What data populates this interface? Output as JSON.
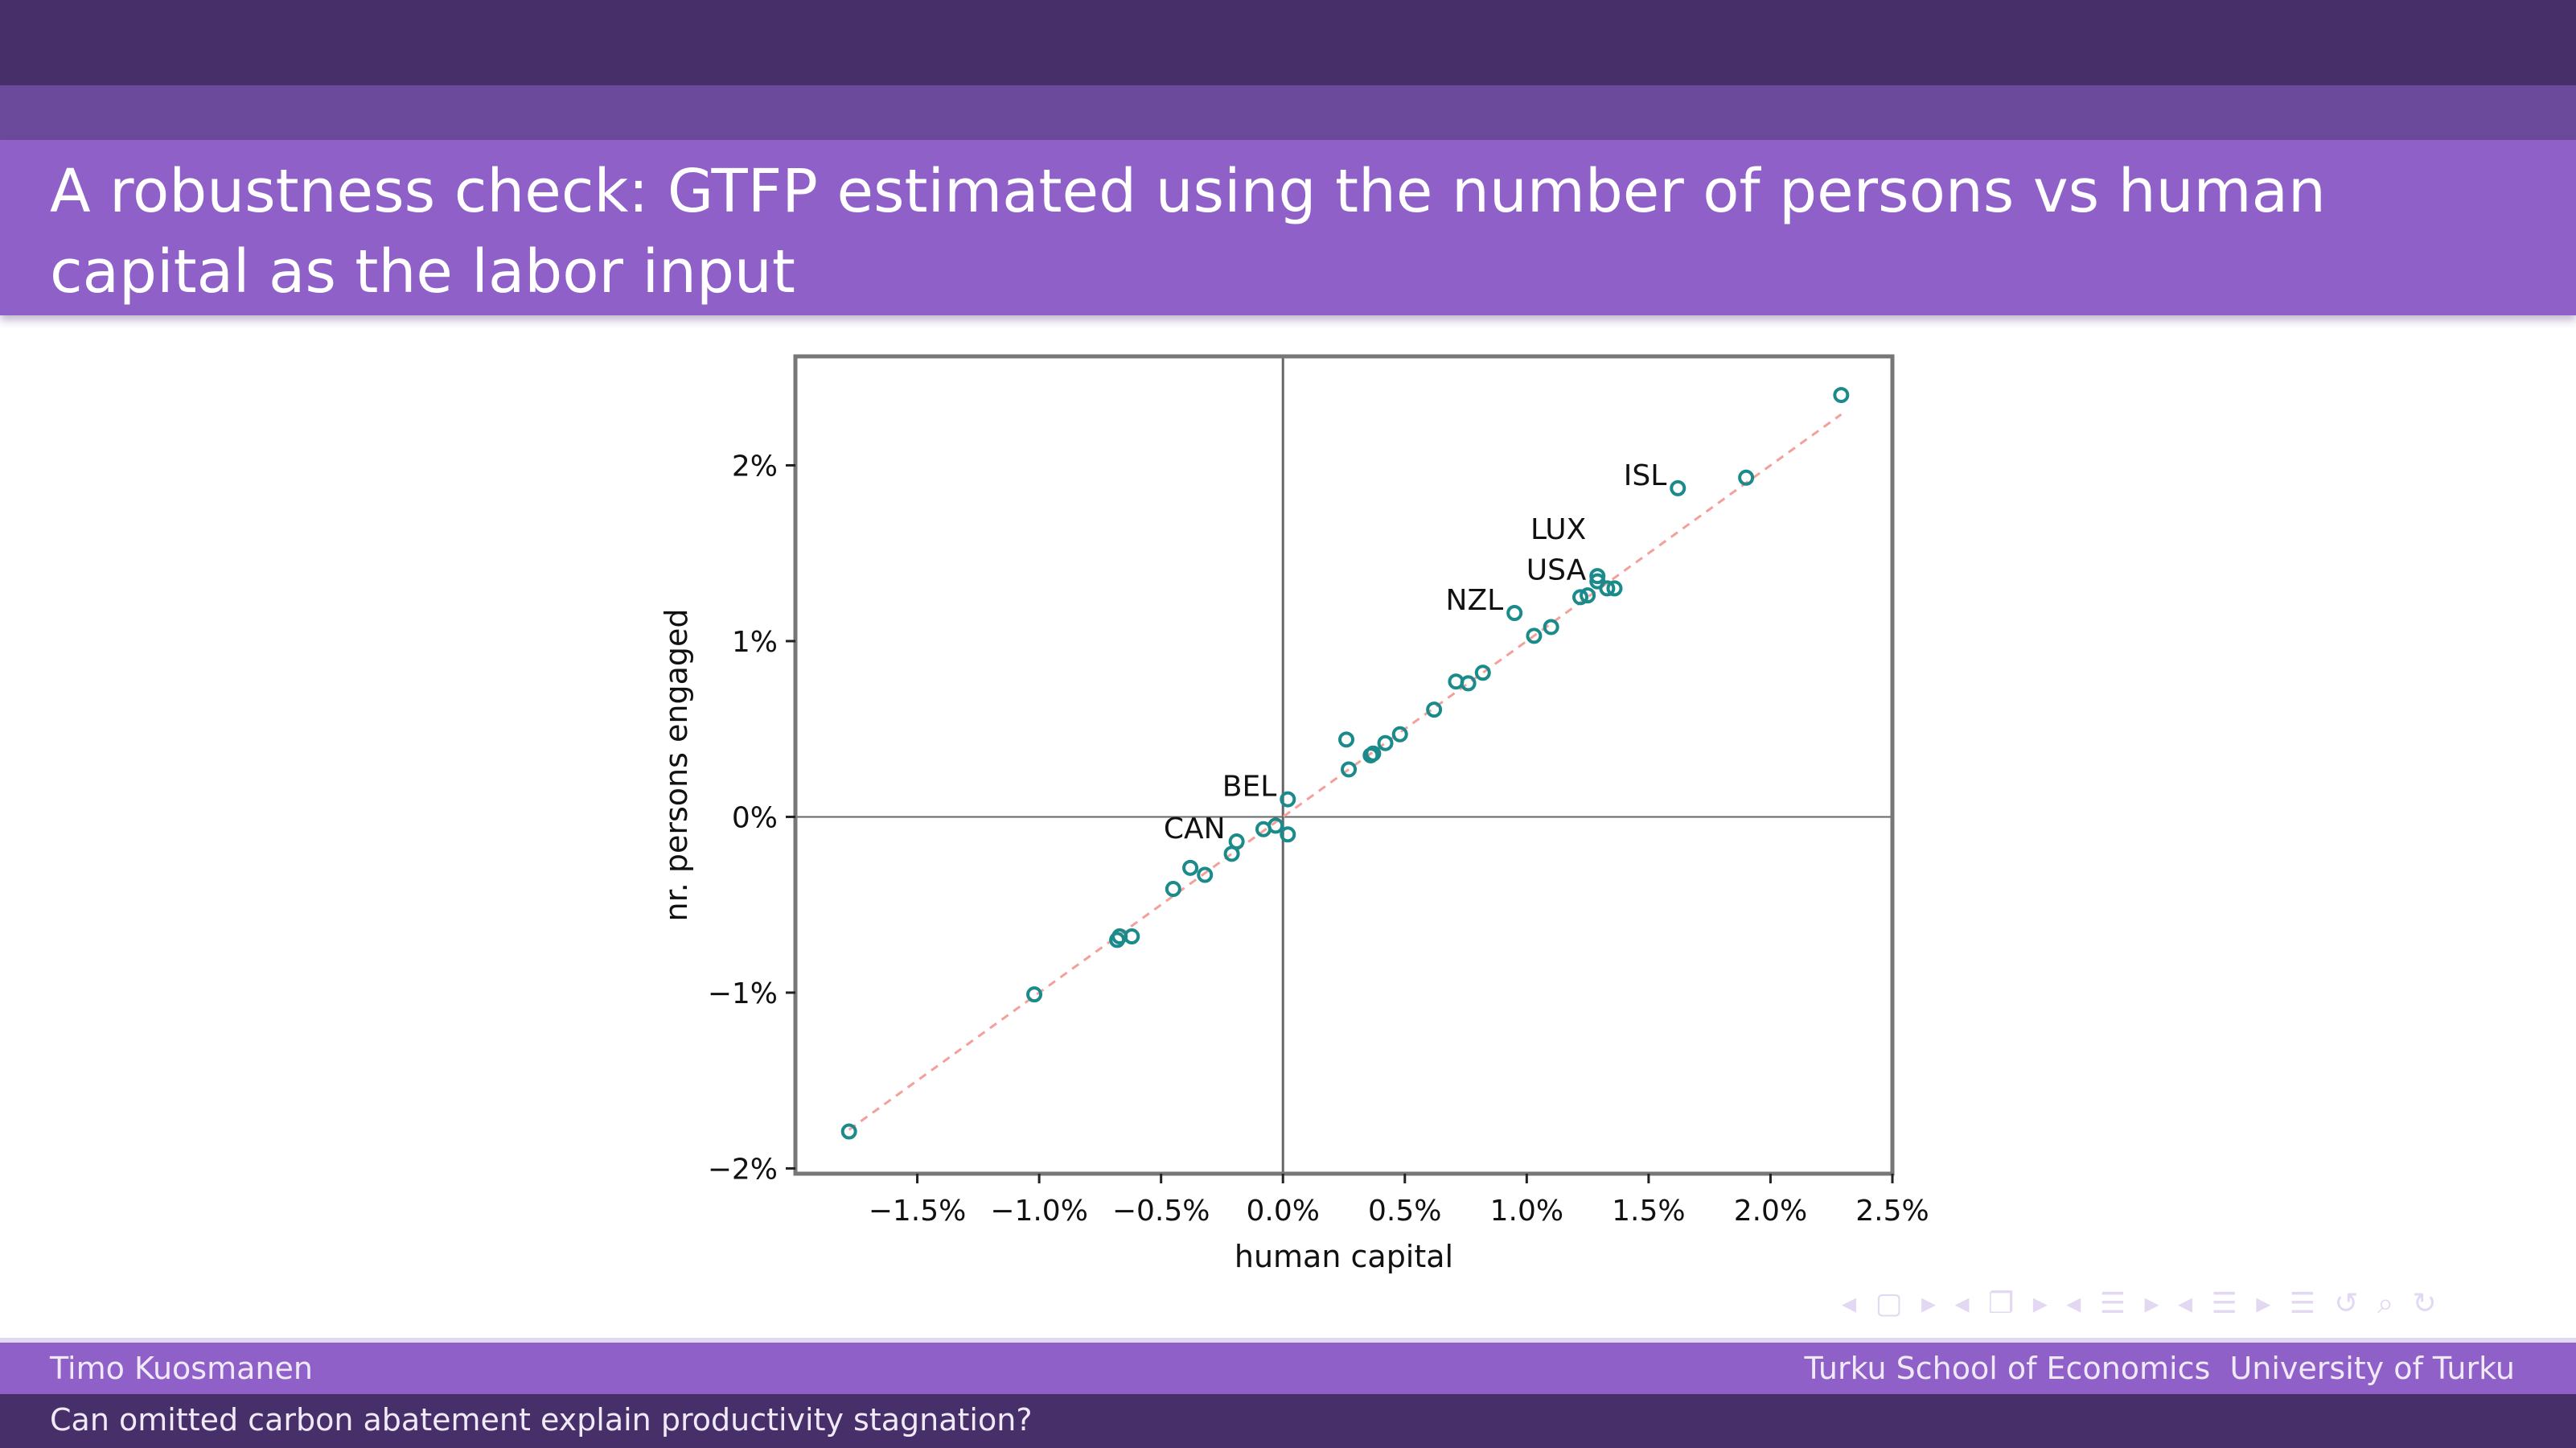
{
  "slide": {
    "title": "A robustness check: GTFP estimated using the number of persons vs human capital as the labor input",
    "footer_author": "Timo Kuosmanen",
    "footer_institution": "Turku School of Economics  University of Turku",
    "footer_talk": "Can omitted carbon abatement explain productivity stagnation?",
    "nav_icons": "◂ ▢ ▸ ◂ ❐ ▸ ◂ ☰ ▸ ◂ ☰ ▸  ☰  ↺ ⌕ ↻"
  },
  "colors": {
    "dark": "#472f69",
    "accent": "#8f60c8",
    "marker": "#1a8a8a",
    "fit_line": "#f4a09a"
  },
  "chart_data": {
    "type": "scatter",
    "xlabel": "human capital",
    "ylabel": "nr. persons engaged",
    "xlim": [
      -2.0,
      2.5
    ],
    "ylim": [
      -2.03,
      2.62
    ],
    "x_ticks": [
      -1.5,
      -1.0,
      -0.5,
      0.0,
      0.5,
      1.0,
      1.5,
      2.0,
      2.5
    ],
    "x_tick_labels": [
      "−1.5%",
      "−1.0%",
      "−0.5%",
      "0.0%",
      "0.5%",
      "1.0%",
      "1.5%",
      "2.0%",
      "2.5%"
    ],
    "y_ticks": [
      -2,
      -1,
      0,
      1,
      2
    ],
    "y_tick_labels": [
      "−2%",
      "−1%",
      "0%",
      "1%",
      "2%"
    ],
    "reference_lines": {
      "x": 0,
      "y": 0
    },
    "fit_line": [
      [
        -1.78,
        -1.78
      ],
      [
        2.29,
        2.29
      ]
    ],
    "grid": false,
    "points": [
      {
        "x": -1.78,
        "y": -1.79
      },
      {
        "x": -1.02,
        "y": -1.01
      },
      {
        "x": -0.68,
        "y": -0.7
      },
      {
        "x": -0.67,
        "y": -0.68
      },
      {
        "x": -0.62,
        "y": -0.68
      },
      {
        "x": -0.45,
        "y": -0.41
      },
      {
        "x": -0.38,
        "y": -0.29
      },
      {
        "x": -0.32,
        "y": -0.33
      },
      {
        "x": -0.21,
        "y": -0.21
      },
      {
        "x": -0.19,
        "y": -0.14,
        "label": "CAN"
      },
      {
        "x": -0.08,
        "y": -0.07
      },
      {
        "x": -0.03,
        "y": -0.05
      },
      {
        "x": 0.02,
        "y": -0.1
      },
      {
        "x": 0.02,
        "y": 0.1,
        "label": "BEL"
      },
      {
        "x": 0.26,
        "y": 0.44
      },
      {
        "x": 0.27,
        "y": 0.27
      },
      {
        "x": 0.36,
        "y": 0.35
      },
      {
        "x": 0.37,
        "y": 0.36
      },
      {
        "x": 0.42,
        "y": 0.42
      },
      {
        "x": 0.48,
        "y": 0.47
      },
      {
        "x": 0.62,
        "y": 0.61
      },
      {
        "x": 0.71,
        "y": 0.77
      },
      {
        "x": 0.76,
        "y": 0.76
      },
      {
        "x": 0.82,
        "y": 0.82
      },
      {
        "x": 0.95,
        "y": 1.16,
        "label": "NZL"
      },
      {
        "x": 1.03,
        "y": 1.03
      },
      {
        "x": 1.1,
        "y": 1.08
      },
      {
        "x": 1.22,
        "y": 1.25
      },
      {
        "x": 1.25,
        "y": 1.26
      },
      {
        "x": 1.29,
        "y": 1.37,
        "label": "LUX"
      },
      {
        "x": 1.29,
        "y": 1.34,
        "label": "USA"
      },
      {
        "x": 1.33,
        "y": 1.3
      },
      {
        "x": 1.36,
        "y": 1.3
      },
      {
        "x": 1.62,
        "y": 1.87,
        "label": "ISL"
      },
      {
        "x": 1.9,
        "y": 1.93
      },
      {
        "x": 2.29,
        "y": 2.4
      }
    ]
  }
}
